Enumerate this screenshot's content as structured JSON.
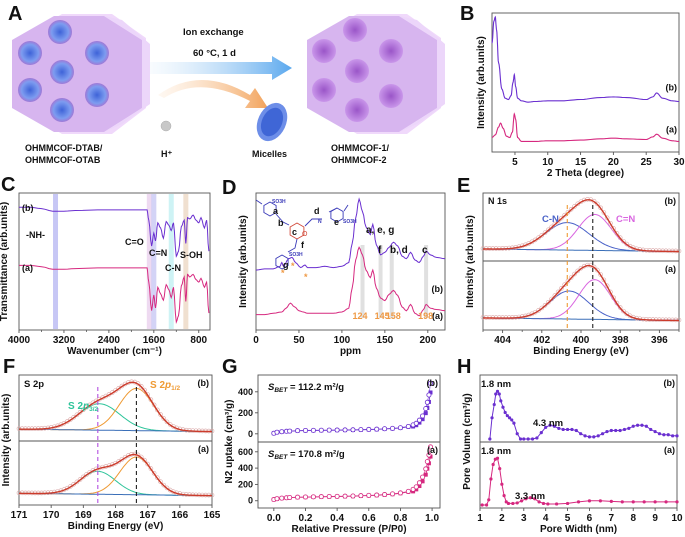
{
  "panel_labels": [
    "A",
    "B",
    "C",
    "D",
    "E",
    "F",
    "G",
    "H"
  ],
  "schematic": {
    "arrow_top_line1": "Ion exchange",
    "arrow_top_line2": "60 °C, 1 d",
    "left_label_line1": "OHMMCOF-DTAB/",
    "left_label_line2": "OHMMCOF-OTAB",
    "right_label_line1": "OHMMCOF-1/",
    "right_label_line2": "OHMMCOF-2",
    "proton_label": "H⁺",
    "micelles_label": "Micelles",
    "colors": {
      "framework": "#d4b2ec",
      "micelle": "#5b7fe0",
      "arrow_blue": "#5aa8ee",
      "arrow_orange": "#f2a25a"
    }
  },
  "colors": {
    "series_a": "#d6287f",
    "series_b": "#6a2fd0",
    "blue_fit": "#4a62c8",
    "magenta_fit": "#d966e0",
    "envelope": "#cc3b2b",
    "green_fit": "#2ec49a",
    "orange_fit": "#ef9a33",
    "orange_label": "#ef9a45"
  },
  "chart_data": [
    {
      "id": "B",
      "type": "line",
      "title": "",
      "xlabel": "2 Theta (degree)",
      "ylabel": "Intensity (arb.units)",
      "xlim": [
        1.5,
        30
      ],
      "xticks": [
        5,
        10,
        15,
        20,
        25,
        30
      ],
      "series": [
        {
          "name": "(b)",
          "x": [
            1.5,
            1.8,
            2.0,
            2.2,
            2.5,
            3,
            3.5,
            4,
            4.4,
            4.7,
            4.9,
            5.1,
            5.4,
            6,
            7,
            8,
            10,
            12,
            15,
            18,
            20,
            22,
            25,
            26,
            26.6,
            27.5,
            29,
            30
          ],
          "y": [
            0.8,
            0.97,
            1.0,
            0.9,
            0.65,
            0.45,
            0.38,
            0.37,
            0.4,
            0.5,
            0.56,
            0.47,
            0.38,
            0.36,
            0.35,
            0.355,
            0.36,
            0.36,
            0.37,
            0.385,
            0.39,
            0.385,
            0.37,
            0.39,
            0.42,
            0.38,
            0.36,
            0.355
          ]
        },
        {
          "name": "(a)",
          "x": [
            1.5,
            2.0,
            2.5,
            2.8,
            3.2,
            3.7,
            4.2,
            4.6,
            4.9,
            5.1,
            5.4,
            6,
            8,
            10,
            12,
            15,
            18,
            20,
            22,
            25,
            26,
            26.6,
            27.5,
            29,
            30
          ],
          "y": [
            0.08,
            0.1,
            0.16,
            0.19,
            0.15,
            0.09,
            0.08,
            0.12,
            0.26,
            0.22,
            0.08,
            0.05,
            0.05,
            0.055,
            0.055,
            0.06,
            0.07,
            0.075,
            0.07,
            0.065,
            0.085,
            0.105,
            0.075,
            0.055,
            0.05
          ]
        }
      ]
    },
    {
      "id": "C",
      "type": "line",
      "xlabel": "Wavenumber (cm⁻¹)",
      "ylabel": "Transmittance (arb.units)",
      "xlim": [
        4000,
        600
      ],
      "xticks": [
        4000,
        3200,
        2400,
        1600,
        800
      ],
      "bands": [
        {
          "x": 3350,
          "color": "#b9b9f2"
        },
        {
          "x": 1680,
          "color": "#ead1ee"
        },
        {
          "x": 1600,
          "color": "#c8c8f4"
        },
        {
          "x": 1290,
          "color": "#c2f0f2"
        },
        {
          "x": 1030,
          "color": "#ecd8c4"
        }
      ],
      "annotations": [
        "-NH-",
        "C=O",
        "C=N",
        "C-N",
        "S-OH"
      ],
      "series": [
        {
          "name": "(b)",
          "x": [
            4000,
            3800,
            3600,
            3400,
            3200,
            3000,
            2600,
            2000,
            1720,
            1690,
            1640,
            1600,
            1570,
            1530,
            1480,
            1430,
            1380,
            1330,
            1290,
            1250,
            1200,
            1160,
            1110,
            1060,
            1030,
            1000,
            960,
            900,
            850,
            800,
            760,
            700,
            660,
            620
          ],
          "y": [
            0.92,
            0.92,
            0.91,
            0.89,
            0.89,
            0.895,
            0.9,
            0.9,
            0.9,
            0.82,
            0.62,
            0.72,
            0.66,
            0.8,
            0.76,
            0.68,
            0.81,
            0.78,
            0.74,
            0.8,
            0.54,
            0.58,
            0.77,
            0.82,
            0.64,
            0.84,
            0.83,
            0.86,
            0.82,
            0.8,
            0.84,
            0.76,
            0.82,
            0.58
          ]
        },
        {
          "name": "(a)",
          "x": [
            4000,
            3800,
            3600,
            3400,
            3200,
            3000,
            2600,
            2000,
            1720,
            1690,
            1640,
            1600,
            1570,
            1530,
            1480,
            1430,
            1380,
            1330,
            1290,
            1250,
            1200,
            1160,
            1110,
            1060,
            1030,
            1000,
            960,
            900,
            850,
            800,
            760,
            700,
            660,
            620
          ],
          "y": [
            0.47,
            0.47,
            0.46,
            0.44,
            0.44,
            0.445,
            0.45,
            0.45,
            0.45,
            0.34,
            0.12,
            0.24,
            0.14,
            0.3,
            0.25,
            0.2,
            0.32,
            0.28,
            0.22,
            0.3,
            0.03,
            0.08,
            0.31,
            0.38,
            0.19,
            0.4,
            0.38,
            0.4,
            0.36,
            0.34,
            0.37,
            0.3,
            0.34,
            0.1
          ]
        }
      ]
    },
    {
      "id": "D",
      "type": "line",
      "xlabel": "ppm",
      "ylabel": "Intensity (arb.units)",
      "xlim": [
        0,
        220
      ],
      "xticks": [
        0,
        50,
        100,
        150,
        200
      ],
      "reference_lines": [
        124,
        145,
        158,
        198
      ],
      "reference_labels": [
        "124",
        "145",
        "158",
        "198"
      ],
      "peak_labels": [
        "a, e, g",
        "f",
        "b, d",
        "c"
      ],
      "structure_labels": [
        "a",
        "b",
        "c",
        "d",
        "e",
        "f",
        "g",
        "SO3H",
        "N",
        "O"
      ],
      "series": [
        {
          "name": "(b)",
          "x": [
            0,
            10,
            20,
            28,
            30,
            32,
            38,
            42,
            46,
            52,
            57,
            60,
            70,
            80,
            90,
            100,
            108,
            112,
            116,
            120,
            124,
            128,
            133,
            136,
            140,
            145,
            150,
            155,
            160,
            165,
            170,
            175,
            180,
            185,
            190,
            195,
            198,
            203,
            210,
            220
          ],
          "y": [
            0.44,
            0.45,
            0.45,
            0.47,
            0.5,
            0.47,
            0.53,
            0.54,
            0.5,
            0.46,
            0.48,
            0.46,
            0.46,
            0.47,
            0.46,
            0.47,
            0.5,
            0.65,
            0.85,
            1.0,
            0.9,
            0.78,
            0.72,
            0.8,
            0.64,
            0.56,
            0.58,
            0.62,
            0.66,
            0.63,
            0.55,
            0.53,
            0.58,
            0.52,
            0.5,
            0.55,
            0.59,
            0.56,
            0.54,
            0.53
          ]
        },
        {
          "name": "(a)",
          "x": [
            0,
            10,
            20,
            30,
            35,
            40,
            45,
            50,
            55,
            60,
            70,
            80,
            90,
            100,
            108,
            112,
            116,
            120,
            124,
            128,
            133,
            136,
            140,
            145,
            150,
            155,
            160,
            165,
            170,
            175,
            180,
            185,
            190,
            195,
            198,
            203,
            210,
            220
          ],
          "y": [
            0.09,
            0.09,
            0.1,
            0.11,
            0.14,
            0.18,
            0.15,
            0.12,
            0.11,
            0.1,
            0.1,
            0.1,
            0.1,
            0.11,
            0.14,
            0.3,
            0.52,
            0.62,
            0.56,
            0.44,
            0.38,
            0.44,
            0.3,
            0.22,
            0.2,
            0.25,
            0.28,
            0.24,
            0.15,
            0.12,
            0.17,
            0.1,
            0.08,
            0.13,
            0.17,
            0.14,
            0.13,
            0.12
          ]
        }
      ]
    },
    {
      "id": "E",
      "type": "line",
      "title": "N 1s",
      "xlabel": "Binding Energy (eV)",
      "ylabel": "Intensity (arb.units)",
      "xlim": [
        405,
        395
      ],
      "xticks": [
        404,
        402,
        400,
        398,
        396
      ],
      "dashed_lines": [
        {
          "x": 400.7,
          "color": "#ef9a33"
        },
        {
          "x": 399.4,
          "color": "#222222"
        }
      ],
      "components": [
        "C-N",
        "C=N"
      ],
      "series": [
        {
          "name": "(b)",
          "peaks": [
            {
              "label": "C-N",
              "center": 400.7,
              "height": 0.55,
              "fwhm": 2.6
            },
            {
              "label": "C=N",
              "center": 399.3,
              "height": 0.72,
              "fwhm": 2.0
            }
          ],
          "baseline": [
            0.08,
            0.0
          ]
        },
        {
          "name": "(a)",
          "peaks": [
            {
              "label": "C-N",
              "center": 400.6,
              "height": 0.55,
              "fwhm": 2.3
            },
            {
              "label": "C=N",
              "center": 399.3,
              "height": 0.78,
              "fwhm": 1.9
            }
          ],
          "baseline": [
            0.08,
            0.0
          ]
        }
      ]
    },
    {
      "id": "F",
      "type": "line",
      "title": "S 2p",
      "xlabel": "Binding Energy (eV)",
      "ylabel": "Intensity (arb.units)",
      "xlim": [
        171,
        165
      ],
      "xticks": [
        171,
        170,
        169,
        168,
        167,
        166,
        165
      ],
      "dashed_lines": [
        {
          "x": 168.55,
          "color": "#b44ee0"
        },
        {
          "x": 167.35,
          "color": "#222222"
        }
      ],
      "components": [
        "S 2p3/2",
        "S 2p1/2"
      ],
      "series": [
        {
          "name": "(b)",
          "peaks": [
            {
              "label": "S 2p3/2",
              "center": 168.5,
              "height": 0.55,
              "fwhm": 1.5
            },
            {
              "label": "S 2p1/2",
              "center": 167.35,
              "height": 0.88,
              "fwhm": 1.25
            }
          ]
        },
        {
          "name": "(a)",
          "peaks": [
            {
              "label": "S 2p3/2",
              "center": 168.55,
              "height": 0.5,
              "fwhm": 1.3
            },
            {
              "label": "S 2p1/2",
              "center": 167.35,
              "height": 0.82,
              "fwhm": 1.2
            }
          ]
        }
      ]
    },
    {
      "id": "G",
      "type": "scatter",
      "xlabel": "Relative Pressure (P/P0)",
      "ylabel": "N2 uptake (cm³/g)",
      "xlim": [
        -0.1,
        1.05
      ],
      "xticks": [
        0.0,
        0.2,
        0.4,
        0.6,
        0.8,
        1.0
      ],
      "series": [
        {
          "name": "(b)",
          "annotation": "S_BET = 112.2 m²/g",
          "ylim": [
            -40,
            560
          ],
          "yticks": [
            0,
            200,
            400
          ],
          "x": [
            0.0,
            0.02,
            0.05,
            0.08,
            0.1,
            0.15,
            0.2,
            0.25,
            0.3,
            0.35,
            0.4,
            0.45,
            0.5,
            0.55,
            0.6,
            0.65,
            0.7,
            0.75,
            0.8,
            0.85,
            0.88,
            0.9,
            0.92,
            0.94,
            0.96,
            0.97,
            0.98,
            0.99
          ],
          "y": [
            5,
            15,
            20,
            24,
            26,
            30,
            32,
            33,
            34,
            35,
            36,
            37,
            38,
            40,
            42,
            44,
            48,
            52,
            58,
            70,
            85,
            100,
            130,
            170,
            240,
            300,
            370,
            480
          ]
        },
        {
          "name": "(a)",
          "annotation": "S_BET = 170.8 m²/g",
          "ylim": [
            -40,
            720
          ],
          "yticks": [
            0,
            200,
            400,
            600
          ],
          "x": [
            0.0,
            0.02,
            0.05,
            0.08,
            0.1,
            0.15,
            0.2,
            0.25,
            0.3,
            0.35,
            0.4,
            0.45,
            0.5,
            0.55,
            0.6,
            0.65,
            0.7,
            0.75,
            0.8,
            0.85,
            0.88,
            0.9,
            0.92,
            0.94,
            0.96,
            0.97,
            0.98,
            0.99
          ],
          "y": [
            15,
            25,
            32,
            36,
            40,
            44,
            46,
            48,
            50,
            52,
            54,
            56,
            58,
            62,
            66,
            70,
            76,
            84,
            96,
            115,
            140,
            170,
            220,
            290,
            390,
            480,
            560,
            660
          ]
        }
      ]
    },
    {
      "id": "H",
      "type": "line",
      "xlabel": "Pore Width (nm)",
      "ylabel": "Pore Volume (cm³/g)",
      "xlim": [
        1,
        10
      ],
      "xticks": [
        1,
        2,
        3,
        4,
        5,
        6,
        7,
        8,
        9,
        10
      ],
      "series": [
        {
          "name": "(b)",
          "peak_labels": [
            "1.8 nm",
            "4.3 nm"
          ],
          "x": [
            1.45,
            1.55,
            1.65,
            1.72,
            1.8,
            1.88,
            1.95,
            2.05,
            2.15,
            2.25,
            2.35,
            2.45,
            2.55,
            2.7,
            2.85,
            3.0,
            3.2,
            3.4,
            3.6,
            3.8,
            4.0,
            4.2,
            4.4,
            4.6,
            4.8,
            5.0,
            5.2,
            5.4,
            5.6,
            5.8,
            6.0,
            6.2,
            6.4,
            6.6,
            6.8,
            7.0,
            7.2,
            7.4,
            7.6,
            7.8,
            8.0,
            8.2,
            8.4,
            8.6,
            8.8,
            9.0,
            9.2,
            9.4,
            9.6,
            9.8,
            10
          ],
          "y": [
            0.0,
            0.4,
            0.65,
            0.85,
            0.9,
            0.85,
            0.72,
            0.6,
            0.5,
            0.44,
            0.4,
            0.36,
            0.3,
            0.1,
            0.0,
            0.0,
            0.0,
            0.0,
            0.02,
            0.12,
            0.22,
            0.26,
            0.24,
            0.2,
            0.18,
            0.18,
            0.18,
            0.16,
            0.1,
            0.06,
            0.04,
            0.04,
            0.06,
            0.1,
            0.14,
            0.16,
            0.16,
            0.16,
            0.18,
            0.2,
            0.24,
            0.26,
            0.26,
            0.24,
            0.18,
            0.14,
            0.1,
            0.08,
            0.08,
            0.06,
            0.06
          ]
        },
        {
          "name": "(a)",
          "peak_labels": [
            "1.8 nm",
            "3.3 nm"
          ],
          "x": [
            1.1,
            1.3,
            1.4,
            1.5,
            1.6,
            1.7,
            1.8,
            1.9,
            2.0,
            2.1,
            2.2,
            2.3,
            2.5,
            2.7,
            2.9,
            3.1,
            3.3,
            3.5,
            3.7,
            3.9,
            4.1,
            4.5,
            5.0,
            5.5,
            6.0,
            6.5,
            7.0,
            7.5,
            8.0,
            8.5,
            9.0,
            9.5,
            10
          ],
          "y": [
            0.0,
            0.0,
            0.1,
            0.5,
            0.78,
            0.88,
            0.9,
            0.7,
            0.4,
            0.18,
            0.06,
            0.03,
            0.03,
            0.04,
            0.08,
            0.12,
            0.14,
            0.12,
            0.06,
            0.03,
            0.02,
            0.02,
            0.03,
            0.06,
            0.08,
            0.08,
            0.07,
            0.06,
            0.06,
            0.06,
            0.06,
            0.06,
            0.06
          ]
        }
      ]
    }
  ]
}
